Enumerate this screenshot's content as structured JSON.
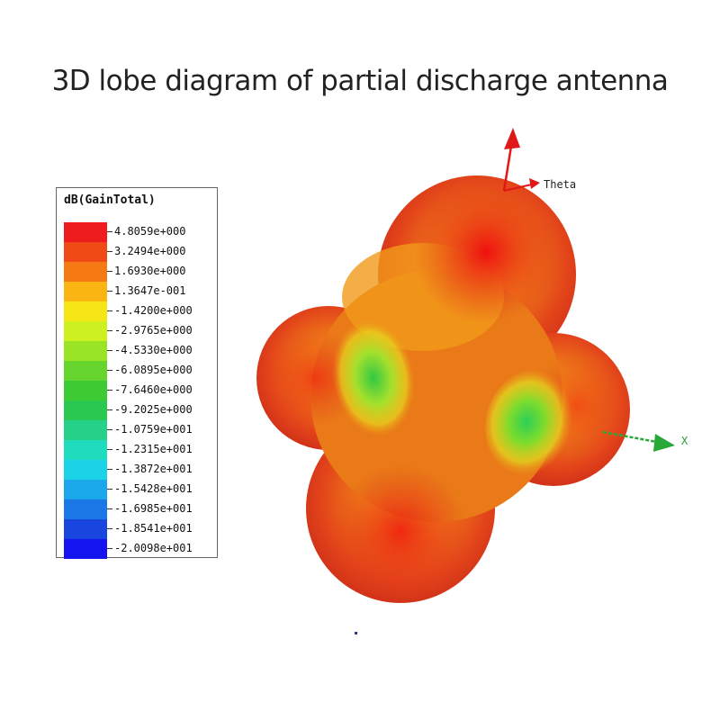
{
  "title": "3D lobe diagram of partial discharge antenna",
  "legend": {
    "title": "dB(GainTotal)",
    "items": [
      {
        "label": "4.8059e+000",
        "color": "#ee1c1c"
      },
      {
        "label": "3.2494e+000",
        "color": "#f04a16"
      },
      {
        "label": "1.6930e+000",
        "color": "#f57a14"
      },
      {
        "label": "1.3647e-001",
        "color": "#fbb512"
      },
      {
        "label": "-1.4200e+000",
        "color": "#f6e617"
      },
      {
        "label": "-2.9765e+000",
        "color": "#cdf020"
      },
      {
        "label": "-4.5330e+000",
        "color": "#9ae428"
      },
      {
        "label": "-6.0895e+000",
        "color": "#66d62e"
      },
      {
        "label": "-7.6460e+000",
        "color": "#3dcb33"
      },
      {
        "label": "-9.2025e+000",
        "color": "#2ac850"
      },
      {
        "label": "-1.0759e+001",
        "color": "#25d088"
      },
      {
        "label": "-1.2315e+001",
        "color": "#20dcbf"
      },
      {
        "label": "-1.3872e+001",
        "color": "#1cd2e6"
      },
      {
        "label": "-1.5428e+001",
        "color": "#1ba8ea"
      },
      {
        "label": "-1.6985e+001",
        "color": "#1a78e6"
      },
      {
        "label": "-1.8541e+001",
        "color": "#1a46e0"
      },
      {
        "label": "-2.0098e+001",
        "color": "#1414ee"
      }
    ]
  },
  "axes": {
    "theta_label": "Theta",
    "x_label": "X"
  }
}
